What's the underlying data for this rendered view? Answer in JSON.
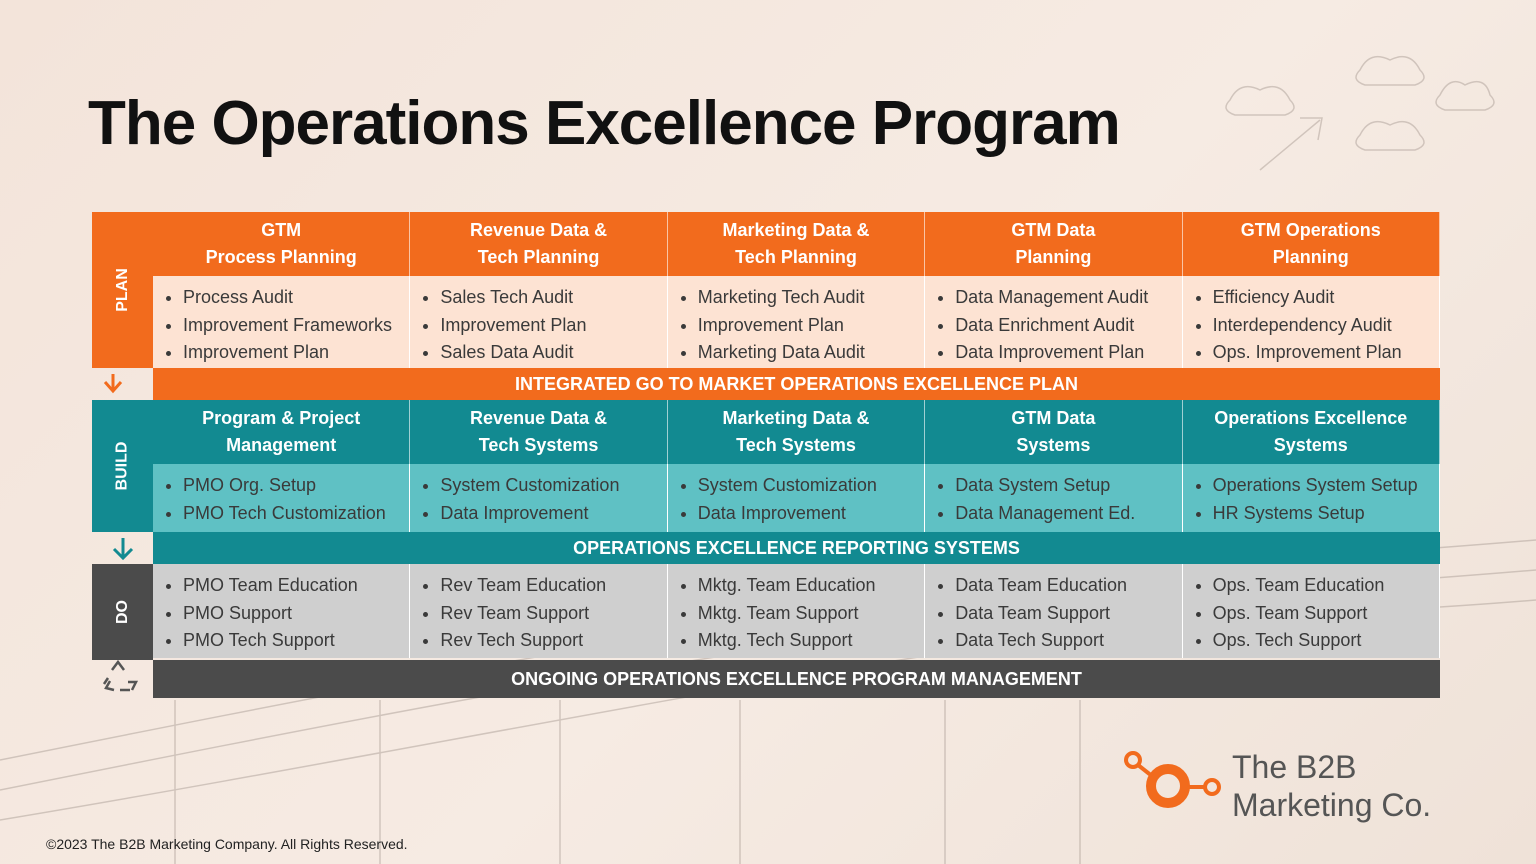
{
  "title": "The Operations Excellence Program",
  "phases": {
    "plan": "PLAN",
    "build": "BUILD",
    "do": "DO"
  },
  "plan": {
    "columns": [
      {
        "heading": [
          "GTM",
          "Process Planning"
        ],
        "items": [
          "Process Audit",
          "Improvement Frameworks",
          "Improvement Plan"
        ]
      },
      {
        "heading": [
          "Revenue Data &",
          "Tech Planning"
        ],
        "items": [
          "Sales Tech Audit",
          "Improvement Plan",
          "Sales Data Audit"
        ]
      },
      {
        "heading": [
          "Marketing Data &",
          "Tech Planning"
        ],
        "items": [
          "Marketing Tech Audit",
          "Improvement Plan",
          "Marketing Data Audit"
        ]
      },
      {
        "heading": [
          "GTM Data",
          "Planning"
        ],
        "items": [
          "Data Management Audit",
          "Data Enrichment Audit",
          "Data Improvement Plan"
        ]
      },
      {
        "heading": [
          "GTM Operations",
          "Planning"
        ],
        "items": [
          "Efficiency Audit",
          "Interdependency Audit",
          "Ops. Improvement Plan"
        ]
      }
    ],
    "summary": "INTEGRATED GO TO MARKET OPERATIONS EXCELLENCE PLAN"
  },
  "build": {
    "columns": [
      {
        "heading": [
          "Program & Project",
          "Management"
        ],
        "items": [
          "PMO Org. Setup",
          "PMO Tech Customization"
        ]
      },
      {
        "heading": [
          "Revenue Data &",
          "Tech Systems"
        ],
        "items": [
          "System Customization",
          "Data Improvement"
        ]
      },
      {
        "heading": [
          "Marketing Data &",
          "Tech Systems"
        ],
        "items": [
          "System Customization",
          "Data Improvement"
        ]
      },
      {
        "heading": [
          "GTM Data",
          "Systems"
        ],
        "items": [
          "Data System Setup",
          "Data Management Ed."
        ]
      },
      {
        "heading": [
          "Operations Excellence",
          "Systems"
        ],
        "items": [
          "Operations System Setup",
          "HR Systems Setup"
        ]
      }
    ],
    "summary": "OPERATIONS EXCELLENCE REPORTING SYSTEMS"
  },
  "do": {
    "columns": [
      {
        "items": [
          "PMO Team Education",
          "PMO Support",
          "PMO Tech Support"
        ]
      },
      {
        "items": [
          "Rev Team Education",
          "Rev Team Support",
          "Rev Tech Support"
        ]
      },
      {
        "items": [
          "Mktg. Team Education",
          "Mktg. Team Support",
          "Mktg. Tech Support"
        ]
      },
      {
        "items": [
          "Data Team Education",
          "Data Team Support",
          "Data Tech Support"
        ]
      },
      {
        "items": [
          "Ops. Team Education",
          "Ops. Team Support",
          "Ops. Tech Support"
        ]
      }
    ],
    "summary": "ONGOING OPERATIONS EXCELLENCE PROGRAM MANAGEMENT"
  },
  "logo": [
    "The B2B",
    "Marketing Co."
  ],
  "footer": "©2023 The B2B Marketing Company. All Rights Reserved."
}
